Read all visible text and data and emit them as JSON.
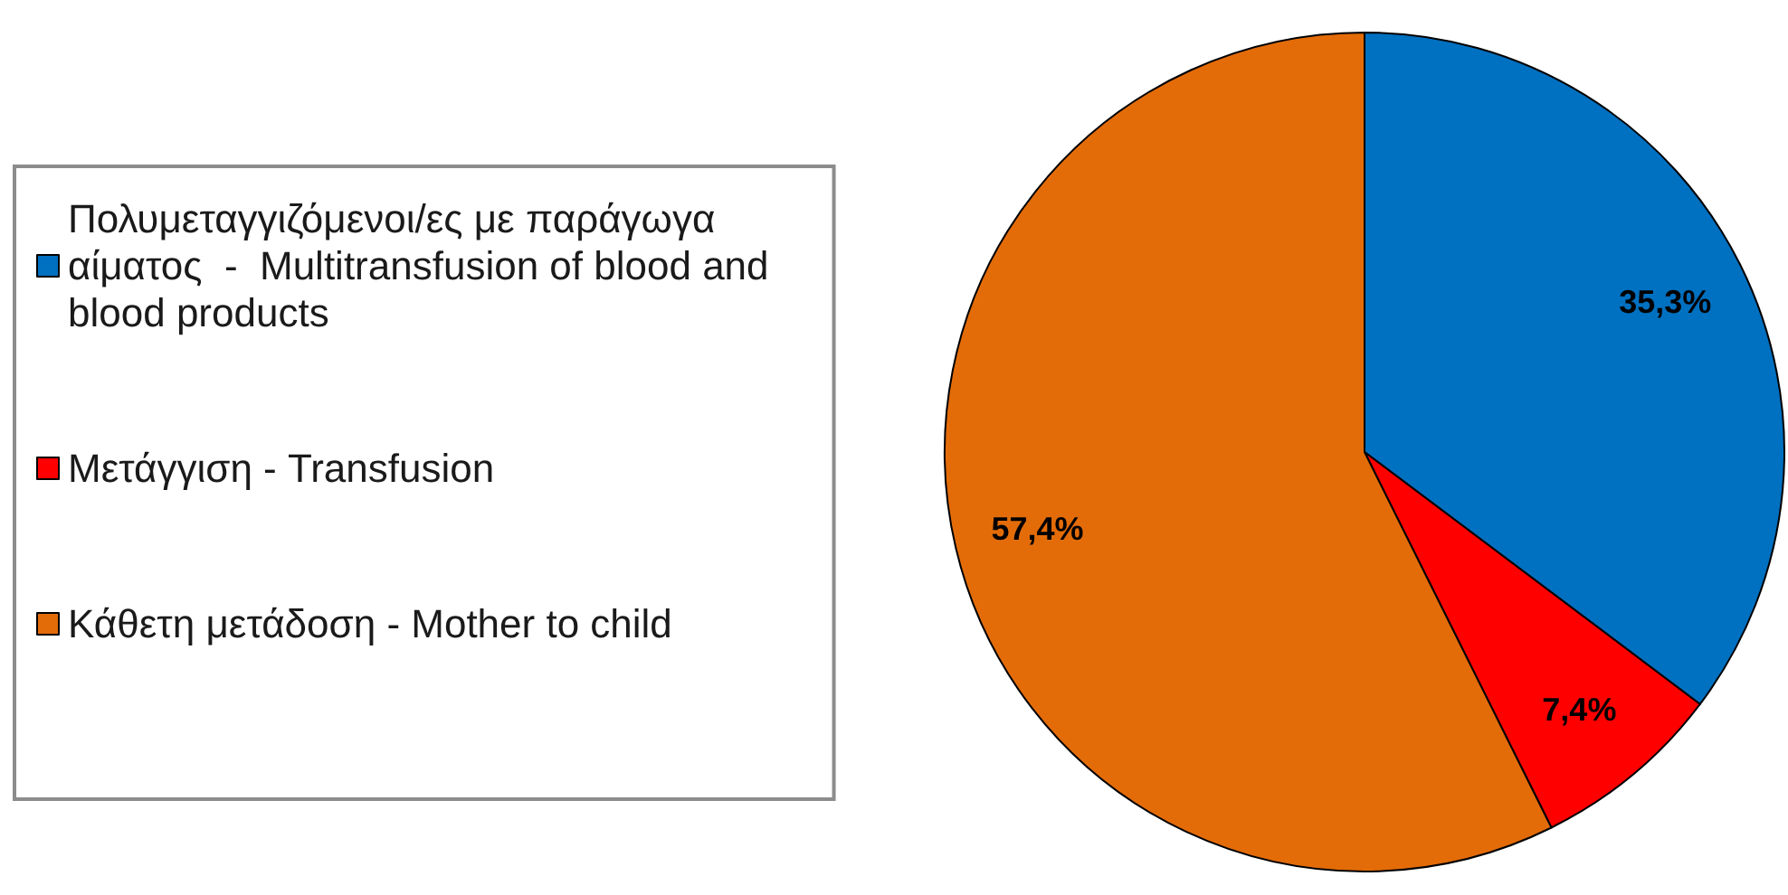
{
  "chart_data": {
    "type": "pie",
    "categories": [
      "Πολυμεταγγιζόμενοι/ες με παράγωγα αίματος  -  Multitransfusion of blood and blood products",
      "Μετάγγιση - Transfusion",
      "Κάθετη μετάδοση - Mother to child"
    ],
    "values": [
      35.3,
      7.4,
      57.4
    ],
    "colors": [
      "#0070c0",
      "#ff0000",
      "#e36c09"
    ],
    "value_labels": [
      "35,3%",
      "7,4%",
      "57,4%"
    ],
    "legend": "left"
  }
}
